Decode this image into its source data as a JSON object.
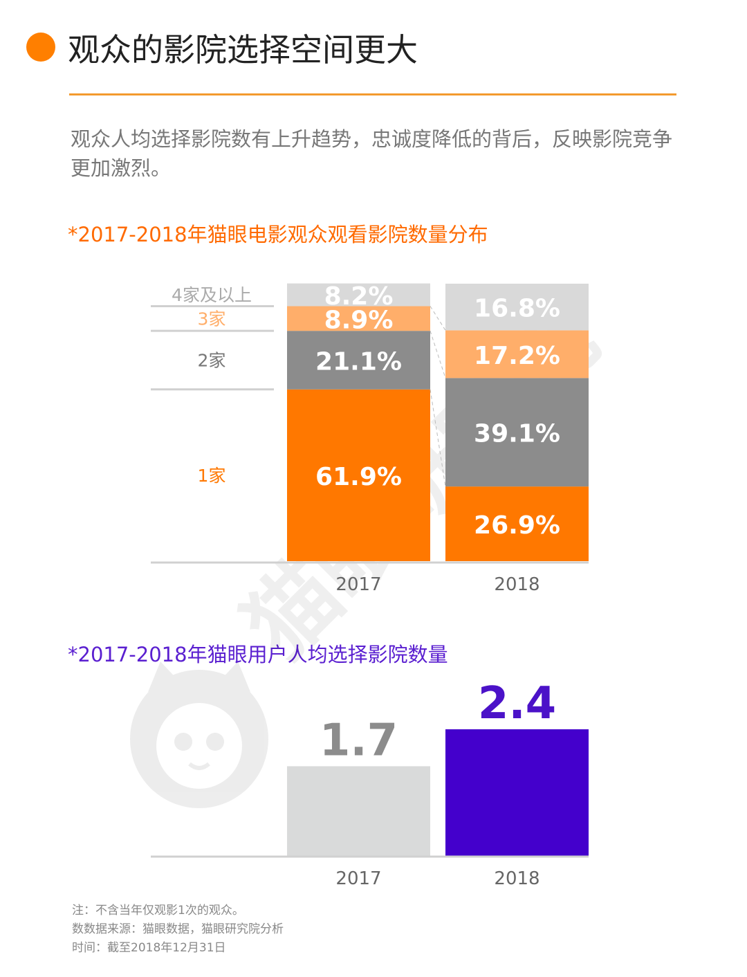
{
  "header": {
    "title": "观众的影院选择空间更大",
    "description": "观众人均选择影院数有上升趋势，忠诚度降低的背后，反映影院竞争更加激烈。"
  },
  "chart1_title": "*2017-2018年猫眼电影观众观看影院数量分布",
  "chart2_title": "*2017-2018年猫眼用户人均选择影院数量",
  "notes": {
    "line1": "注：不含当年仅观影1次的观众。",
    "line2": "数数据来源：猫眼数据，猫眼研究院分析",
    "line3": "时间：截至2018年12月31日"
  },
  "watermark": {
    "text": "猫眼研究院",
    "icon": "cat-logo-icon"
  },
  "colors": {
    "accent": "#FF7F00",
    "rule": "#F39A2E",
    "one": "#FF7800",
    "two": "#8C8C8C",
    "three": "#FFAE6A",
    "four": "#D9D9D9",
    "bar2017": "#D9DADA",
    "bar2018": "#4400CC",
    "purple_label": "#4B12C8",
    "gray_label": "#8C8C8C"
  },
  "chart_data": [
    {
      "type": "bar",
      "stacked": true,
      "categories": [
        "2017",
        "2018"
      ],
      "series": [
        {
          "name": "1家",
          "values": [
            61.9,
            26.9
          ],
          "labels": [
            "61.9%",
            "26.9%"
          ]
        },
        {
          "name": "2家",
          "values": [
            21.1,
            39.1
          ],
          "labels": [
            "21.1%",
            "39.1%"
          ]
        },
        {
          "name": "3家",
          "values": [
            8.9,
            17.2
          ],
          "labels": [
            "8.9%",
            "17.2%"
          ]
        },
        {
          "name": "4家及以上",
          "values": [
            8.2,
            16.8
          ],
          "labels": [
            "8.2%",
            "16.8%"
          ]
        }
      ],
      "ylim": [
        0,
        100
      ],
      "legend": "left"
    },
    {
      "type": "bar",
      "categories": [
        "2017",
        "2018"
      ],
      "values": [
        1.7,
        2.4
      ],
      "labels": [
        "1.7",
        "2.4"
      ]
    }
  ]
}
